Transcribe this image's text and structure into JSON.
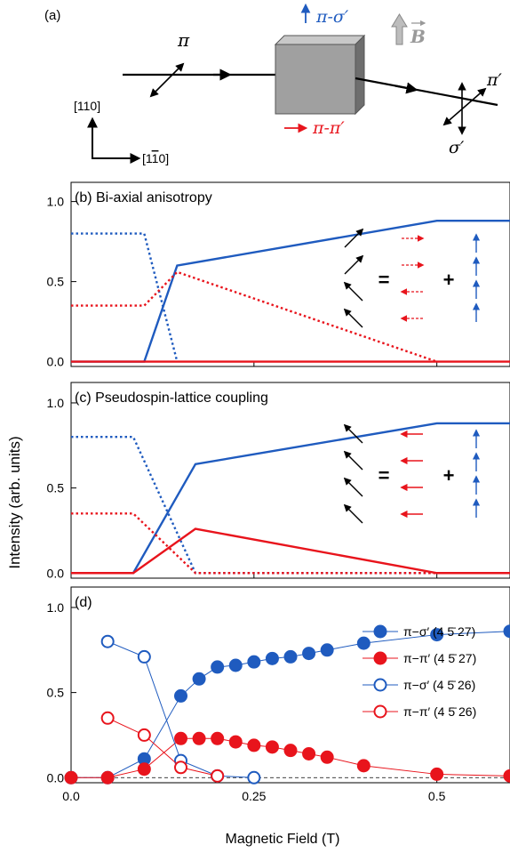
{
  "diagram": {
    "panel_label": "(a)",
    "pi": "π",
    "pi_sigma": "π-σ′",
    "pi_pi": "π-π′",
    "b_field": "B",
    "dir_110": "[110]",
    "dir_1m10": "[1",
    "dir_1m10_bar": "1",
    "dir_1m10_end": "0]",
    "pi_prime": "π′",
    "sigma_prime": "σ′",
    "colors": {
      "blue": "#1f5bbf",
      "red": "#e8141c",
      "box": "#a0a0a0"
    }
  },
  "ylabel": "Intensity (arb. units)",
  "xlabel": "Magnetic Field (T)",
  "ytick_labels": [
    "0.0",
    "0.5",
    "1.0"
  ],
  "xtick_labels": [
    "0.0",
    "0.25",
    "0.5"
  ],
  "equation": {
    "equals": "=",
    "plus": "+"
  },
  "chart_data": [
    {
      "type": "line",
      "title": "(b) Bi-axial anisotropy",
      "xlim": [
        0,
        0.6
      ],
      "ylim": [
        -0.03,
        1.12
      ],
      "series": [
        {
          "style": "solid",
          "color": "#1f5bbf",
          "x": [
            0,
            0.1,
            0.145,
            0.5,
            0.6
          ],
          "y": [
            0,
            0,
            0.6,
            0.88,
            0.88
          ]
        },
        {
          "style": "dotted",
          "color": "#1f5bbf",
          "x": [
            0,
            0.1,
            0.145
          ],
          "y": [
            0.8,
            0.8,
            0
          ]
        },
        {
          "style": "dotted",
          "color": "#e8141c",
          "x": [
            0,
            0.1,
            0.145,
            0.5
          ],
          "y": [
            0.35,
            0.35,
            0.56,
            0
          ]
        },
        {
          "style": "solid",
          "color": "#e8141c",
          "x": [
            0,
            0.6
          ],
          "y": [
            0,
            0
          ]
        }
      ]
    },
    {
      "type": "line",
      "title": "(c) Pseudospin-lattice coupling",
      "xlim": [
        0,
        0.6
      ],
      "ylim": [
        -0.03,
        1.12
      ],
      "series": [
        {
          "style": "solid",
          "color": "#1f5bbf",
          "x": [
            0,
            0.085,
            0.17,
            0.5,
            0.6
          ],
          "y": [
            0,
            0,
            0.64,
            0.88,
            0.88
          ]
        },
        {
          "style": "dotted",
          "color": "#1f5bbf",
          "x": [
            0,
            0.085,
            0.17,
            0.6
          ],
          "y": [
            0.8,
            0.8,
            0,
            0
          ]
        },
        {
          "style": "dotted",
          "color": "#e8141c",
          "x": [
            0,
            0.085,
            0.17,
            0.6
          ],
          "y": [
            0.35,
            0.35,
            0,
            0
          ]
        },
        {
          "style": "solid",
          "color": "#e8141c",
          "x": [
            0,
            0.085,
            0.17,
            0.5,
            0.6
          ],
          "y": [
            0,
            0,
            0.26,
            0,
            0
          ]
        }
      ]
    },
    {
      "type": "scatter",
      "title": "(d)",
      "xlim": [
        0,
        0.6
      ],
      "ylim": [
        -0.03,
        1.12
      ],
      "legend": "right",
      "series": [
        {
          "name": "π−σ′ (4 5̄ 27)",
          "marker": "filled",
          "color": "#1f5bbf",
          "x": [
            0,
            0.05,
            0.1,
            0.15,
            0.175,
            0.2,
            0.225,
            0.25,
            0.275,
            0.3,
            0.325,
            0.35,
            0.4,
            0.5,
            0.6
          ],
          "y": [
            0,
            0,
            0.11,
            0.48,
            0.58,
            0.65,
            0.66,
            0.68,
            0.7,
            0.71,
            0.73,
            0.75,
            0.79,
            0.84,
            0.86
          ]
        },
        {
          "name": "π−π′ (4 5̄ 27)",
          "marker": "filled",
          "color": "#e8141c",
          "x": [
            0,
            0.05,
            0.1,
            0.15,
            0.175,
            0.2,
            0.225,
            0.25,
            0.275,
            0.3,
            0.325,
            0.35,
            0.4,
            0.5,
            0.6
          ],
          "y": [
            0,
            0,
            0.05,
            0.23,
            0.23,
            0.23,
            0.21,
            0.19,
            0.18,
            0.16,
            0.14,
            0.12,
            0.07,
            0.02,
            0.01
          ]
        },
        {
          "name": "π−σ′ (4 5̄ 26)",
          "marker": "open",
          "color": "#1f5bbf",
          "x": [
            0.05,
            0.1,
            0.15,
            0.2,
            0.25
          ],
          "y": [
            0.8,
            0.71,
            0.1,
            0.01,
            0
          ]
        },
        {
          "name": "π−π′ (4 5̄ 26)",
          "marker": "open",
          "color": "#e8141c",
          "x": [
            0.05,
            0.1,
            0.15,
            0.2
          ],
          "y": [
            0.35,
            0.25,
            0.06,
            0.01
          ]
        }
      ]
    }
  ]
}
